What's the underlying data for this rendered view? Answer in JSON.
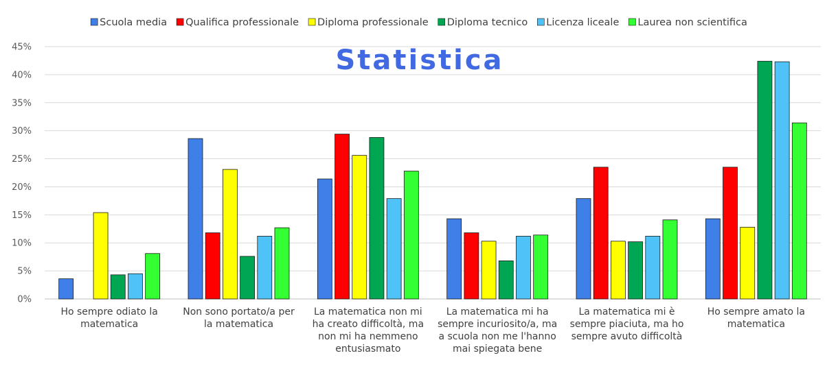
{
  "chart_data": {
    "type": "bar",
    "title": "Statistica",
    "ylim": [
      0,
      45
    ],
    "y_ticks": [
      "0%",
      "5%",
      "10%",
      "15%",
      "20%",
      "25%",
      "30%",
      "35%",
      "40%",
      "45%"
    ],
    "y_unit": "%",
    "grid": true,
    "legend_position": "top",
    "categories": [
      [
        "Ho sempre odiato la",
        "matematica"
      ],
      [
        "Non sono portato/a per",
        "la matematica"
      ],
      [
        "La matematica non mi",
        "ha creato difficoltà, ma",
        "non mi ha nemmeno",
        "entusiasmato"
      ],
      [
        "La matematica mi ha",
        "sempre incuriosito/a, ma",
        "a scuola non me l'hanno",
        "mai spiegata bene"
      ],
      [
        "La matematica mi è",
        "sempre piaciuta, ma ho",
        "sempre avuto difficoltà"
      ],
      [
        "Ho sempre amato la",
        "matematica"
      ]
    ],
    "series": [
      {
        "name": "Scuola media",
        "color": "#3F7FE8",
        "values": [
          3.6,
          28.6,
          21.4,
          14.3,
          17.9,
          14.3
        ]
      },
      {
        "name": "Qualifica professionale",
        "color": "#FF0000",
        "values": [
          0,
          11.8,
          29.4,
          11.8,
          23.5,
          23.5
        ]
      },
      {
        "name": "Diploma professionale",
        "color": "#FFFF00",
        "values": [
          15.4,
          23.1,
          25.6,
          10.3,
          10.3,
          12.8
        ]
      },
      {
        "name": "Diploma tecnico",
        "color": "#00A651",
        "values": [
          4.3,
          7.6,
          28.8,
          6.8,
          10.2,
          42.4
        ]
      },
      {
        "name": "Licenza liceale",
        "color": "#4FC3F7",
        "values": [
          4.5,
          11.2,
          17.9,
          11.2,
          11.2,
          42.3
        ]
      },
      {
        "name": "Laurea non scientifica",
        "color": "#33FF33",
        "values": [
          8.1,
          12.7,
          22.8,
          11.4,
          14.1,
          31.4
        ]
      }
    ]
  }
}
